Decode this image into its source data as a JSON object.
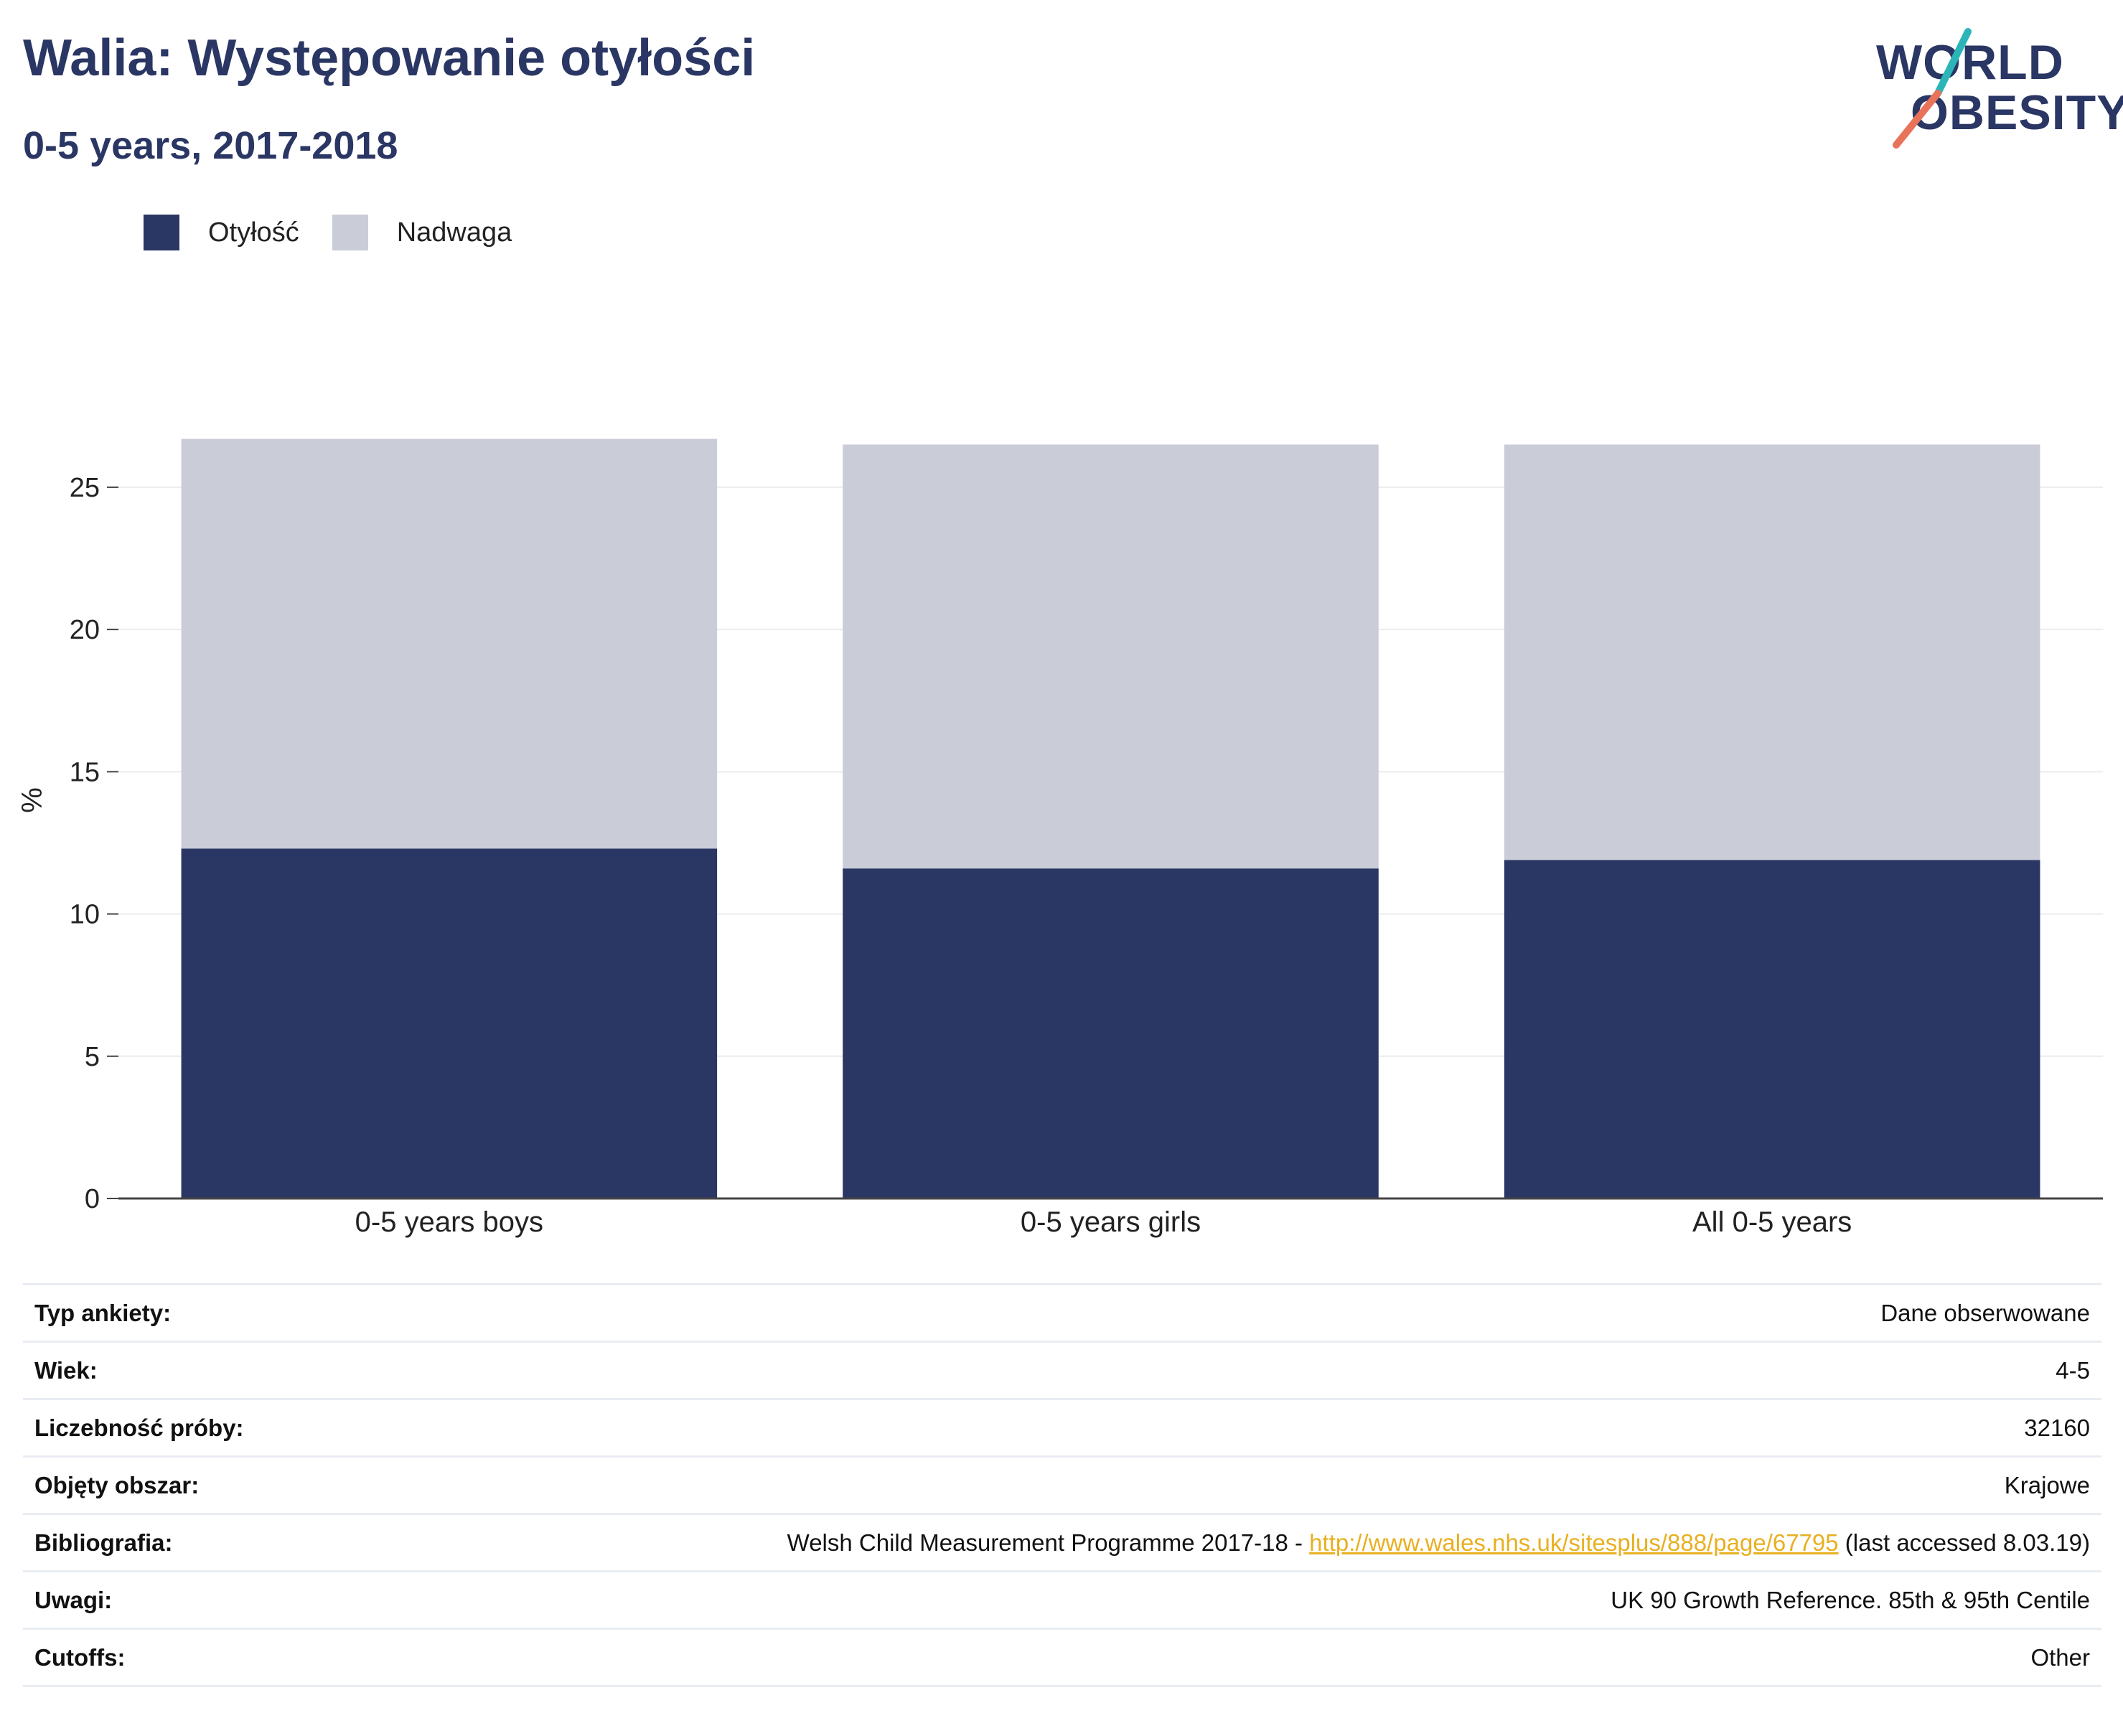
{
  "header": {
    "title": "Walia: Występowanie otyłości",
    "subtitle": "0-5 years, 2017-2018"
  },
  "logo": {
    "line1": "WORLD",
    "line2": "OBESITY",
    "accent_teal": "#2bb5b8",
    "accent_coral": "#e8735a"
  },
  "colors": {
    "brand_navy": "#2a3663",
    "overweight_gray": "#cacdd8",
    "link": "#e8b021"
  },
  "chart_data": {
    "type": "bar",
    "stacked": true,
    "title": "",
    "xlabel": "",
    "ylabel": "%",
    "ylim": [
      0,
      28
    ],
    "yticks": [
      0,
      5,
      10,
      15,
      20,
      25
    ],
    "grid": true,
    "legend_position": "top-left",
    "categories": [
      "0-5 years boys",
      "0-5 years girls",
      "All 0-5 years"
    ],
    "series": [
      {
        "name": "Otyłość",
        "color": "#2a3663",
        "values": [
          12.3,
          11.6,
          11.9
        ]
      },
      {
        "name": "Nadwaga",
        "color": "#cacdd8",
        "values": [
          14.4,
          14.9,
          14.6
        ]
      }
    ]
  },
  "meta": {
    "rows": [
      {
        "label": "Typ ankiety:",
        "value": "Dane obserwowane"
      },
      {
        "label": "Wiek:",
        "value": "4-5"
      },
      {
        "label": "Liczebność próby:",
        "value": "32160"
      },
      {
        "label": "Objęty obszar:",
        "value": "Krajowe"
      },
      {
        "label": "Bibliografia:",
        "value_prefix": "Welsh Child Measurement Programme 2017-18 - ",
        "link": "http://www.wales.nhs.uk/sitesplus/888/page/67795",
        "value_suffix": " (last accessed 8.03.19)"
      },
      {
        "label": "Uwagi:",
        "value": "UK 90 Growth Reference. 85th & 95th Centile"
      },
      {
        "label": "Cutoffs:",
        "value": "Other"
      }
    ]
  }
}
